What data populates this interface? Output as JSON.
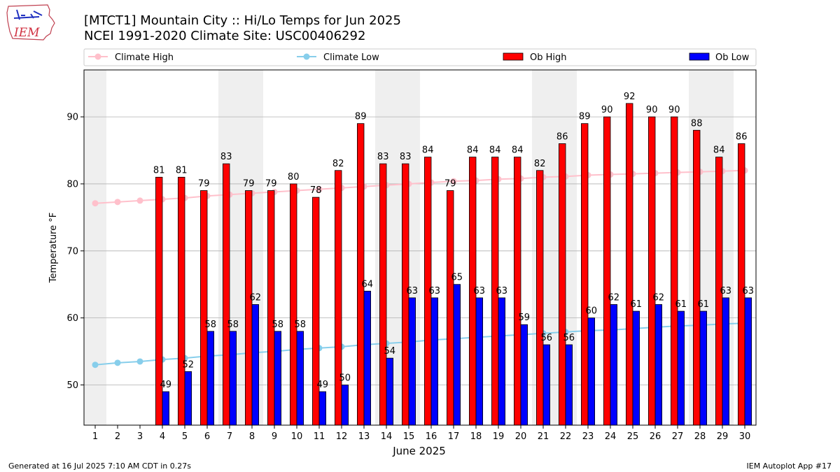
{
  "header": {
    "title_line1": "[MTCT1] Mountain City :: Hi/Lo Temps for Jun 2025",
    "title_line2": "NCEI 1991-2020 Climate Site: USC00406292"
  },
  "logo": {
    "text": "IEM"
  },
  "footer": {
    "left": "Generated at 16 Jul 2025 7:10 AM CDT in 0.27s",
    "right": "IEM Autoplot App #17"
  },
  "colors": {
    "ob_high": "#ff0000",
    "ob_low": "#0000ff",
    "climate_high": "#ffc0cb",
    "climate_low": "#87ceeb",
    "weekend_band": "#efefef",
    "grid": "#b0b0b0"
  },
  "chart_data": {
    "type": "bar",
    "xlabel": "June 2025",
    "ylabel": "Temperature °F",
    "ylim": [
      44,
      97
    ],
    "yticks": [
      50,
      60,
      70,
      80,
      90
    ],
    "grid": "horizontal",
    "legend": "top",
    "days": [
      1,
      2,
      3,
      4,
      5,
      6,
      7,
      8,
      9,
      10,
      11,
      12,
      13,
      14,
      15,
      16,
      17,
      18,
      19,
      20,
      21,
      22,
      23,
      24,
      25,
      26,
      27,
      28,
      29,
      30
    ],
    "shaded_days": [
      1,
      7,
      8,
      14,
      15,
      21,
      22,
      28,
      29
    ],
    "series": [
      {
        "name": "Climate High",
        "kind": "line",
        "values": [
          77.1,
          77.3,
          77.5,
          77.7,
          77.9,
          78.2,
          78.4,
          78.6,
          78.8,
          79.0,
          79.2,
          79.4,
          79.6,
          79.8,
          80.0,
          80.2,
          80.4,
          80.5,
          80.7,
          80.8,
          81.0,
          81.1,
          81.3,
          81.4,
          81.5,
          81.6,
          81.7,
          81.8,
          81.9,
          82.0
        ]
      },
      {
        "name": "Climate Low",
        "kind": "line",
        "values": [
          53.0,
          53.3,
          53.5,
          53.8,
          54.0,
          54.3,
          54.5,
          54.8,
          55.0,
          55.3,
          55.5,
          55.7,
          56.0,
          56.2,
          56.4,
          56.7,
          56.9,
          57.1,
          57.3,
          57.5,
          57.7,
          57.9,
          58.1,
          58.2,
          58.4,
          58.6,
          58.8,
          58.9,
          59.1,
          59.2
        ]
      },
      {
        "name": "Ob High",
        "kind": "bar",
        "values": [
          null,
          null,
          null,
          81,
          81,
          79,
          83,
          79,
          79,
          80,
          78,
          82,
          89,
          83,
          83,
          84,
          79,
          84,
          84,
          84,
          82,
          86,
          89,
          90,
          92,
          90,
          90,
          88,
          84,
          86
        ]
      },
      {
        "name": "Ob Low",
        "kind": "bar",
        "values": [
          null,
          null,
          null,
          49,
          52,
          58,
          58,
          62,
          58,
          58,
          49,
          50,
          64,
          54,
          63,
          63,
          65,
          63,
          63,
          59,
          56,
          56,
          60,
          62,
          61,
          62,
          61,
          61,
          63,
          63
        ]
      }
    ]
  }
}
